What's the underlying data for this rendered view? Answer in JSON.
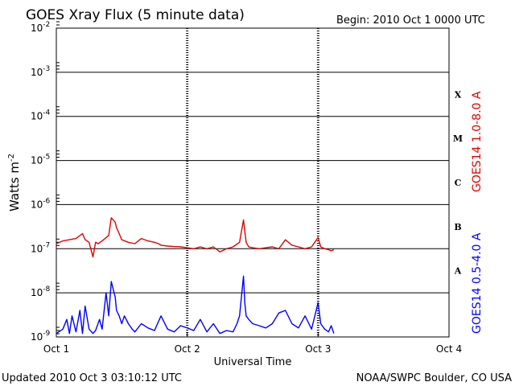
{
  "chart_data": {
    "type": "line",
    "title": "GOES Xray Flux (5 minute data)",
    "begin_label": "Begin:  2010 Oct 1 0000 UTC",
    "xlabel": "Universal Time",
    "ylabel_base": "Watts m",
    "ylabel_exp": "-2",
    "x_ticks": [
      "Oct 1",
      "Oct 2",
      "Oct 3",
      "Oct 4"
    ],
    "x_range_days": [
      0,
      3
    ],
    "y_scale": "log",
    "y_range": [
      1e-09,
      0.01
    ],
    "y_ticks": [
      {
        "base": "10",
        "exp": "-9"
      },
      {
        "base": "10",
        "exp": "-8"
      },
      {
        "base": "10",
        "exp": "-7"
      },
      {
        "base": "10",
        "exp": "-6"
      },
      {
        "base": "10",
        "exp": "-5"
      },
      {
        "base": "10",
        "exp": "-4"
      },
      {
        "base": "10",
        "exp": "-3"
      },
      {
        "base": "10",
        "exp": "-2"
      }
    ],
    "flare_classes": [
      "A",
      "B",
      "C",
      "M",
      "X"
    ],
    "grid": true,
    "series": [
      {
        "name": "GOES14 1.0-8.0 A",
        "color": "#e00000",
        "x": [
          0.0,
          0.05,
          0.1,
          0.15,
          0.2,
          0.22,
          0.25,
          0.28,
          0.3,
          0.32,
          0.35,
          0.4,
          0.42,
          0.45,
          0.46,
          0.48,
          0.5,
          0.55,
          0.6,
          0.65,
          0.7,
          0.75,
          0.78,
          0.8,
          0.85,
          0.9,
          0.95,
          1.0,
          1.05,
          1.1,
          1.15,
          1.2,
          1.25,
          1.3,
          1.35,
          1.4,
          1.43,
          1.44,
          1.45,
          1.47,
          1.5,
          1.55,
          1.6,
          1.65,
          1.7,
          1.75,
          1.8,
          1.85,
          1.9,
          1.95,
          2.0,
          2.02,
          2.05,
          2.08,
          2.1,
          2.12
        ],
        "y": [
          1.3e-07,
          1.5e-07,
          1.6e-07,
          1.7e-07,
          2.2e-07,
          1.6e-07,
          1.4e-07,
          6.5e-08,
          1.4e-07,
          1.3e-07,
          1.5e-07,
          2e-07,
          5e-07,
          4e-07,
          3e-07,
          2.2e-07,
          1.6e-07,
          1.4e-07,
          1.3e-07,
          1.7e-07,
          1.5e-07,
          1.4e-07,
          1.3e-07,
          1.2e-07,
          1.15e-07,
          1.12e-07,
          1.1e-07,
          1.05e-07,
          1e-07,
          1.1e-07,
          1e-07,
          1.1e-07,
          8.5e-08,
          1e-07,
          1.1e-07,
          1.4e-07,
          4.5e-07,
          2.5e-07,
          1.4e-07,
          1.1e-07,
          1.05e-07,
          1e-07,
          1.05e-07,
          1.1e-07,
          1e-07,
          1.6e-07,
          1.2e-07,
          1.1e-07,
          1e-07,
          1.1e-07,
          1.8e-07,
          1.1e-07,
          1e-07,
          9.5e-08,
          9e-08,
          9.5e-08
        ]
      },
      {
        "name": "GOES14 0.5-4.0 A",
        "color": "#0000ff",
        "x": [
          0.0,
          0.05,
          0.08,
          0.1,
          0.12,
          0.15,
          0.18,
          0.2,
          0.22,
          0.25,
          0.28,
          0.3,
          0.33,
          0.35,
          0.38,
          0.4,
          0.42,
          0.45,
          0.46,
          0.48,
          0.5,
          0.52,
          0.55,
          0.58,
          0.6,
          0.65,
          0.7,
          0.75,
          0.8,
          0.85,
          0.9,
          0.95,
          1.0,
          1.05,
          1.1,
          1.15,
          1.2,
          1.25,
          1.3,
          1.35,
          1.38,
          1.4,
          1.43,
          1.44,
          1.45,
          1.47,
          1.5,
          1.55,
          1.6,
          1.65,
          1.7,
          1.75,
          1.8,
          1.85,
          1.9,
          1.95,
          2.0,
          2.02,
          2.05,
          2.08,
          2.1,
          2.12
        ],
        "y": [
          1.2e-09,
          1.5e-09,
          2.5e-09,
          1.2e-09,
          3e-09,
          1.3e-09,
          4e-09,
          1.2e-09,
          5e-09,
          1.5e-09,
          1.2e-09,
          1.4e-09,
          2.5e-09,
          1.5e-09,
          1e-08,
          3e-09,
          1.8e-08,
          8e-09,
          4e-09,
          3e-09,
          2e-09,
          3e-09,
          2e-09,
          1.5e-09,
          1.3e-09,
          2e-09,
          1.6e-09,
          1.4e-09,
          3e-09,
          1.5e-09,
          1.3e-09,
          1.8e-09,
          1.6e-09,
          1.4e-09,
          2.5e-09,
          1.3e-09,
          2e-09,
          1.2e-09,
          1.4e-09,
          1.3e-09,
          2e-09,
          3e-09,
          2.4e-08,
          6e-09,
          3e-09,
          2.5e-09,
          2e-09,
          1.8e-09,
          1.6e-09,
          2e-09,
          3.5e-09,
          4e-09,
          2e-09,
          1.6e-09,
          3e-09,
          1.5e-09,
          6e-09,
          2e-09,
          1.5e-09,
          1.3e-09,
          1.8e-09,
          1.2e-09
        ]
      }
    ]
  },
  "footer": {
    "updated": "Updated 2010 Oct  3 03:10:12 UTC",
    "credit": "NOAA/SWPC Boulder, CO USA"
  }
}
